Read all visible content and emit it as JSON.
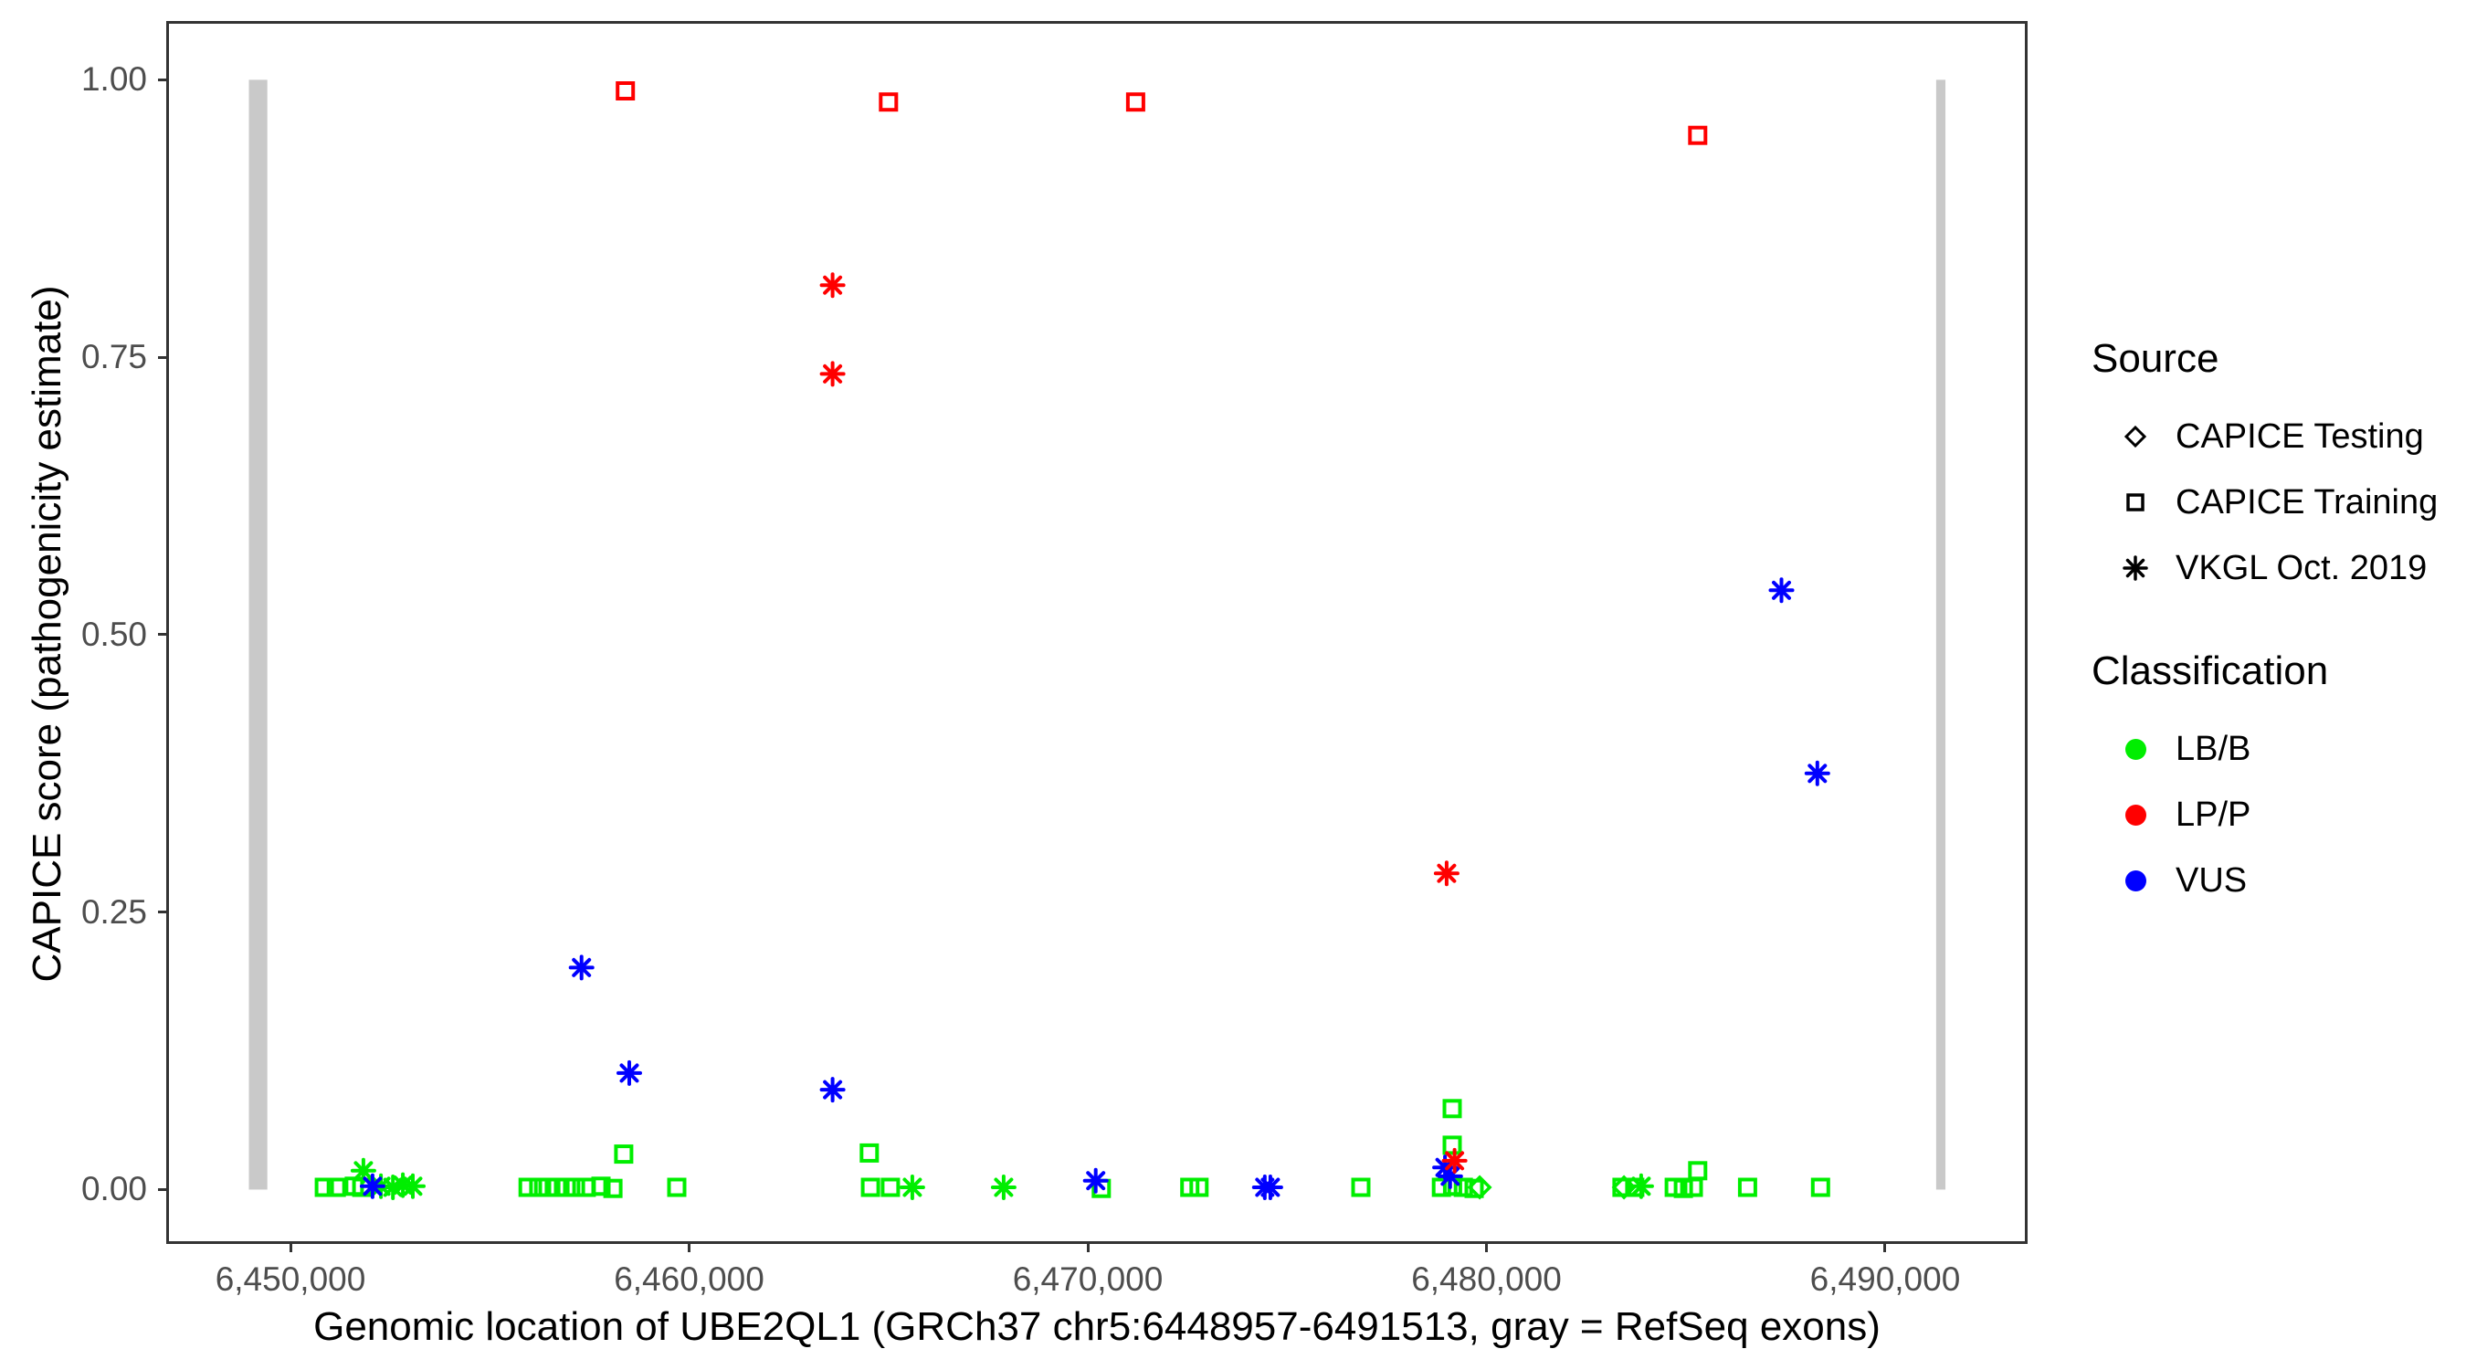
{
  "chart_data": {
    "type": "scatter",
    "title": "",
    "xlabel": "Genomic location of UBE2QL1 (GRCh37 chr5:6448957-6491513, gray = RefSeq exons)",
    "ylabel": "CAPICE score (pathogenicity estimate)",
    "xlim": [
      6446884,
      6493574
    ],
    "ylim": [
      -0.049,
      1.053
    ],
    "grid": false,
    "x_ticks": [
      {
        "value": 6450000,
        "label": "6,450,000"
      },
      {
        "value": 6460000,
        "label": "6,460,000"
      },
      {
        "value": 6470000,
        "label": "6,470,000"
      },
      {
        "value": 6480000,
        "label": "6,480,000"
      },
      {
        "value": 6490000,
        "label": "6,490,000"
      }
    ],
    "y_ticks": [
      {
        "value": 0.0,
        "label": "0.00"
      },
      {
        "value": 0.25,
        "label": "0.25"
      },
      {
        "value": 0.5,
        "label": "0.50"
      },
      {
        "value": 0.75,
        "label": "0.75"
      },
      {
        "value": 1.0,
        "label": "1.00"
      }
    ],
    "exon_color": "#c9c9c9",
    "exons": [
      {
        "start": 6448957,
        "end": 6449420
      },
      {
        "start": 6491280,
        "end": 6491513
      }
    ],
    "marker_by_source": {
      "CAPICE Testing": "diamond",
      "CAPICE Training": "square",
      "VKGL Oct. 2019": "asterisk"
    },
    "color_by_classification": {
      "LB/B": "#00ee00",
      "LP/P": "#ff0000",
      "VUS": "#0000ff"
    },
    "points": [
      {
        "x": 6450850,
        "y": 0.002,
        "src": "CAPICE Training",
        "cls": "LB/B"
      },
      {
        "x": 6451150,
        "y": 0.002,
        "src": "CAPICE Training",
        "cls": "LB/B"
      },
      {
        "x": 6451600,
        "y": 0.003,
        "src": "CAPICE Training",
        "cls": "LB/B"
      },
      {
        "x": 6451790,
        "y": 0.002,
        "src": "CAPICE Training",
        "cls": "LB/B"
      },
      {
        "x": 6455960,
        "y": 0.002,
        "src": "CAPICE Training",
        "cls": "LB/B"
      },
      {
        "x": 6456230,
        "y": 0.002,
        "src": "CAPICE Training",
        "cls": "LB/B"
      },
      {
        "x": 6456460,
        "y": 0.002,
        "src": "CAPICE Training",
        "cls": "LB/B"
      },
      {
        "x": 6456690,
        "y": 0.002,
        "src": "CAPICE Training",
        "cls": "LB/B"
      },
      {
        "x": 6456920,
        "y": 0.002,
        "src": "CAPICE Training",
        "cls": "LB/B"
      },
      {
        "x": 6457150,
        "y": 0.002,
        "src": "CAPICE Training",
        "cls": "LB/B"
      },
      {
        "x": 6457420,
        "y": 0.002,
        "src": "CAPICE Training",
        "cls": "LB/B"
      },
      {
        "x": 6457790,
        "y": 0.003,
        "src": "CAPICE Training",
        "cls": "LB/B"
      },
      {
        "x": 6458090,
        "y": 0.001,
        "src": "CAPICE Training",
        "cls": "LB/B"
      },
      {
        "x": 6458360,
        "y": 0.032,
        "src": "CAPICE Training",
        "cls": "LB/B"
      },
      {
        "x": 6459690,
        "y": 0.002,
        "src": "CAPICE Training",
        "cls": "LB/B"
      },
      {
        "x": 6464520,
        "y": 0.033,
        "src": "CAPICE Training",
        "cls": "LB/B"
      },
      {
        "x": 6464550,
        "y": 0.002,
        "src": "CAPICE Training",
        "cls": "LB/B"
      },
      {
        "x": 6465050,
        "y": 0.002,
        "src": "CAPICE Training",
        "cls": "LB/B"
      },
      {
        "x": 6470340,
        "y": 0.001,
        "src": "CAPICE Training",
        "cls": "LB/B"
      },
      {
        "x": 6472560,
        "y": 0.002,
        "src": "CAPICE Training",
        "cls": "LB/B"
      },
      {
        "x": 6472790,
        "y": 0.002,
        "src": "CAPICE Training",
        "cls": "LB/B"
      },
      {
        "x": 6476850,
        "y": 0.002,
        "src": "CAPICE Training",
        "cls": "LB/B"
      },
      {
        "x": 6478870,
        "y": 0.002,
        "src": "CAPICE Training",
        "cls": "LB/B"
      },
      {
        "x": 6479140,
        "y": 0.073,
        "src": "CAPICE Training",
        "cls": "LB/B"
      },
      {
        "x": 6479140,
        "y": 0.04,
        "src": "CAPICE Training",
        "cls": "LB/B"
      },
      {
        "x": 6479150,
        "y": 0.003,
        "src": "CAPICE Training",
        "cls": "LB/B"
      },
      {
        "x": 6479420,
        "y": 0.002,
        "src": "CAPICE Training",
        "cls": "LB/B"
      },
      {
        "x": 6479690,
        "y": 0.001,
        "src": "CAPICE Training",
        "cls": "LB/B"
      },
      {
        "x": 6483400,
        "y": 0.002,
        "src": "CAPICE Training",
        "cls": "LB/B"
      },
      {
        "x": 6483720,
        "y": 0.002,
        "src": "CAPICE Training",
        "cls": "LB/B"
      },
      {
        "x": 6484710,
        "y": 0.002,
        "src": "CAPICE Training",
        "cls": "LB/B"
      },
      {
        "x": 6484940,
        "y": 0.001,
        "src": "CAPICE Training",
        "cls": "LB/B"
      },
      {
        "x": 6485190,
        "y": 0.002,
        "src": "CAPICE Training",
        "cls": "LB/B"
      },
      {
        "x": 6485300,
        "y": 0.017,
        "src": "CAPICE Training",
        "cls": "LB/B"
      },
      {
        "x": 6486550,
        "y": 0.002,
        "src": "CAPICE Training",
        "cls": "LB/B"
      },
      {
        "x": 6488380,
        "y": 0.002,
        "src": "CAPICE Training",
        "cls": "LB/B"
      },
      {
        "x": 6479830,
        "y": 0.002,
        "src": "CAPICE Testing",
        "cls": "LB/B"
      },
      {
        "x": 6483450,
        "y": 0.002,
        "src": "CAPICE Testing",
        "cls": "LB/B"
      },
      {
        "x": 6451830,
        "y": 0.017,
        "src": "VKGL Oct. 2019",
        "cls": "LB/B"
      },
      {
        "x": 6452270,
        "y": 0.003,
        "src": "VKGL Oct. 2019",
        "cls": "LB/B"
      },
      {
        "x": 6452570,
        "y": 0.002,
        "src": "VKGL Oct. 2019",
        "cls": "LB/B"
      },
      {
        "x": 6452820,
        "y": 0.004,
        "src": "VKGL Oct. 2019",
        "cls": "LB/B"
      },
      {
        "x": 6453070,
        "y": 0.003,
        "src": "VKGL Oct. 2019",
        "cls": "LB/B"
      },
      {
        "x": 6465600,
        "y": 0.002,
        "src": "VKGL Oct. 2019",
        "cls": "LB/B"
      },
      {
        "x": 6467890,
        "y": 0.002,
        "src": "VKGL Oct. 2019",
        "cls": "LB/B"
      },
      {
        "x": 6483880,
        "y": 0.003,
        "src": "VKGL Oct. 2019",
        "cls": "LB/B"
      },
      {
        "x": 6452060,
        "y": 0.003,
        "src": "VKGL Oct. 2019",
        "cls": "VUS"
      },
      {
        "x": 6457300,
        "y": 0.2,
        "src": "VKGL Oct. 2019",
        "cls": "VUS"
      },
      {
        "x": 6458500,
        "y": 0.105,
        "src": "VKGL Oct. 2019",
        "cls": "VUS"
      },
      {
        "x": 6463600,
        "y": 0.09,
        "src": "VKGL Oct. 2019",
        "cls": "VUS"
      },
      {
        "x": 6470200,
        "y": 0.008,
        "src": "VKGL Oct. 2019",
        "cls": "VUS"
      },
      {
        "x": 6474440,
        "y": 0.002,
        "src": "VKGL Oct. 2019",
        "cls": "VUS"
      },
      {
        "x": 6474580,
        "y": 0.002,
        "src": "VKGL Oct. 2019",
        "cls": "VUS"
      },
      {
        "x": 6478960,
        "y": 0.02,
        "src": "VKGL Oct. 2019",
        "cls": "VUS"
      },
      {
        "x": 6479090,
        "y": 0.012,
        "src": "VKGL Oct. 2019",
        "cls": "VUS"
      },
      {
        "x": 6487400,
        "y": 0.54,
        "src": "VKGL Oct. 2019",
        "cls": "VUS"
      },
      {
        "x": 6488300,
        "y": 0.375,
        "src": "VKGL Oct. 2019",
        "cls": "VUS"
      },
      {
        "x": 6458400,
        "y": 0.99,
        "src": "CAPICE Training",
        "cls": "LP/P"
      },
      {
        "x": 6465000,
        "y": 0.98,
        "src": "CAPICE Training",
        "cls": "LP/P"
      },
      {
        "x": 6471200,
        "y": 0.98,
        "src": "CAPICE Training",
        "cls": "LP/P"
      },
      {
        "x": 6485300,
        "y": 0.95,
        "src": "CAPICE Training",
        "cls": "LP/P"
      },
      {
        "x": 6463600,
        "y": 0.815,
        "src": "VKGL Oct. 2019",
        "cls": "LP/P"
      },
      {
        "x": 6463600,
        "y": 0.735,
        "src": "VKGL Oct. 2019",
        "cls": "LP/P"
      },
      {
        "x": 6479000,
        "y": 0.285,
        "src": "VKGL Oct. 2019",
        "cls": "LP/P"
      },
      {
        "x": 6479200,
        "y": 0.026,
        "src": "VKGL Oct. 2019",
        "cls": "LP/P"
      }
    ]
  },
  "legend": {
    "source": {
      "title": "Source",
      "items": [
        {
          "label": "CAPICE Testing",
          "marker": "diamond"
        },
        {
          "label": "CAPICE Training",
          "marker": "square"
        },
        {
          "label": "VKGL Oct. 2019",
          "marker": "asterisk"
        }
      ]
    },
    "classification": {
      "title": "Classification",
      "items": [
        {
          "label": "LB/B",
          "color": "#00ee00"
        },
        {
          "label": "LP/P",
          "color": "#ff0000"
        },
        {
          "label": "VUS",
          "color": "#0000ff"
        }
      ]
    }
  }
}
